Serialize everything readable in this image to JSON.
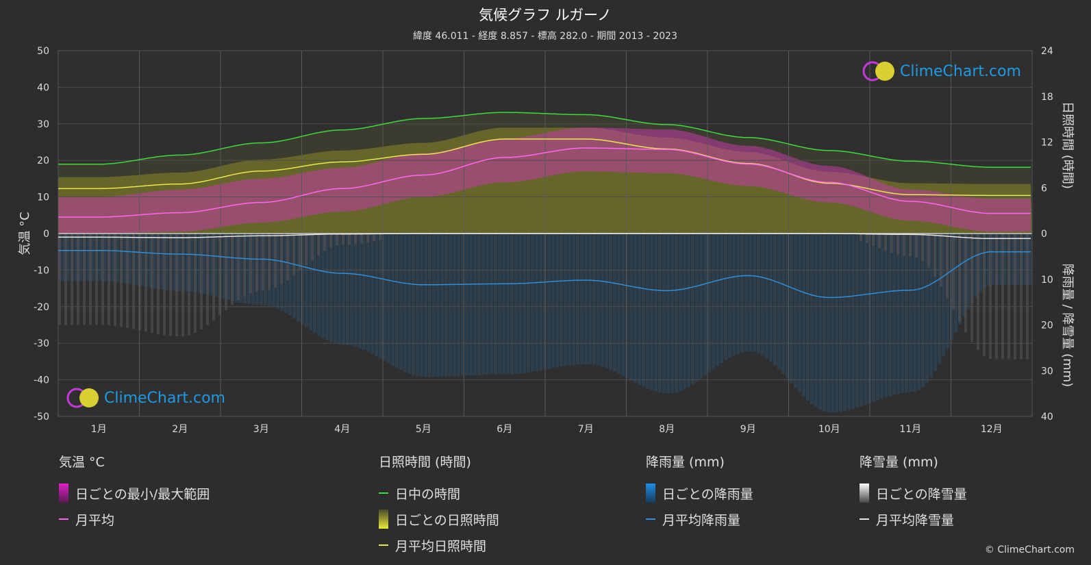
{
  "chart_data": {
    "type": "line",
    "title": "気候グラフ ルガーノ",
    "subtitle": "緯度 46.011 - 経度 8.857 - 標高 282.0 - 期間 2013 - 2023",
    "xlabels": [
      "1月",
      "2月",
      "3月",
      "4月",
      "5月",
      "6月",
      "7月",
      "8月",
      "9月",
      "10月",
      "11月",
      "12月"
    ],
    "ylabel_left": "気温 °C",
    "ylabel_right_top": "日照時間 (時間)",
    "ylabel_right_bottom": "降雨量 / 降雪量 (mm)",
    "ylim_left": [
      -50,
      50
    ],
    "yticks_left": [
      "50",
      "40",
      "30",
      "20",
      "10",
      "0",
      "-10",
      "-20",
      "-30",
      "-40",
      "-50"
    ],
    "yticks_right_top": [
      "24",
      "18",
      "12",
      "6",
      "0"
    ],
    "yticks_right_bottom": [
      "10",
      "20",
      "30",
      "40"
    ],
    "series": [
      {
        "name": "日中の時間",
        "unit": "hours",
        "color": "#3ddc3d",
        "values": [
          9.1,
          10.3,
          11.9,
          13.6,
          15.1,
          15.9,
          15.6,
          14.3,
          12.6,
          10.9,
          9.5,
          8.7
        ]
      },
      {
        "name": "月平均日照時間",
        "unit": "hours",
        "color": "#e8e84a",
        "values": [
          5.9,
          6.5,
          8.2,
          9.4,
          10.4,
          12.4,
          12.4,
          11.1,
          9.2,
          6.6,
          5.1,
          5.0
        ]
      },
      {
        "name": "月平均",
        "unit": "°C",
        "color": "#ff66ee",
        "values": [
          4.5,
          5.7,
          8.5,
          12.3,
          16.0,
          20.8,
          23.4,
          23.0,
          19.0,
          14.0,
          8.8,
          5.5
        ]
      },
      {
        "name": "月平均降雨量",
        "unit": "mm",
        "color": "#2f8fdc",
        "values": [
          3.7,
          4.5,
          5.6,
          8.7,
          11.2,
          11.0,
          10.2,
          12.5,
          9.2,
          14.0,
          12.4,
          4.0
        ]
      },
      {
        "name": "月平均降雪量",
        "unit": "mm",
        "color": "#e8e8e8",
        "values": [
          0.8,
          0.9,
          0.5,
          0.1,
          0.0,
          0.0,
          0.0,
          0.0,
          0.0,
          0.0,
          0.2,
          1.1
        ]
      }
    ],
    "daily_temp_range": {
      "min": [
        0,
        0.5,
        3,
        6,
        10,
        14,
        17,
        16.5,
        13,
        8.5,
        3.5,
        0.5
      ],
      "max": [
        10,
        12,
        15,
        18,
        22,
        26,
        29,
        28.5,
        24,
        18.5,
        12,
        9.5
      ]
    },
    "grid": true
  },
  "legend": {
    "temp": {
      "title": "気温 °C",
      "range": "日ごとの最小/最大範囲",
      "avg": "月平均"
    },
    "sun": {
      "title": "日照時間 (時間)",
      "daylight": "日中の時間",
      "daily": "日ごとの日照時間",
      "avg": "月平均日照時間"
    },
    "rain": {
      "title": "降雨量 (mm)",
      "daily": "日ごとの降雨量",
      "avg": "月平均降雨量"
    },
    "snow": {
      "title": "降雪量 (mm)",
      "daily": "日ごとの降雪量",
      "avg": "月平均降雪量"
    }
  },
  "colors": {
    "range": "#e020c8",
    "daylight": "#3ddc3d",
    "sunshine": "#e8e84a",
    "temp_avg": "#ff66ee",
    "rain": "#2f8fdc",
    "snow": "#e8e8e8",
    "logo": "#1e9be6"
  },
  "logo_text": "ClimeChart.com",
  "copyright": "© ClimeChart.com"
}
